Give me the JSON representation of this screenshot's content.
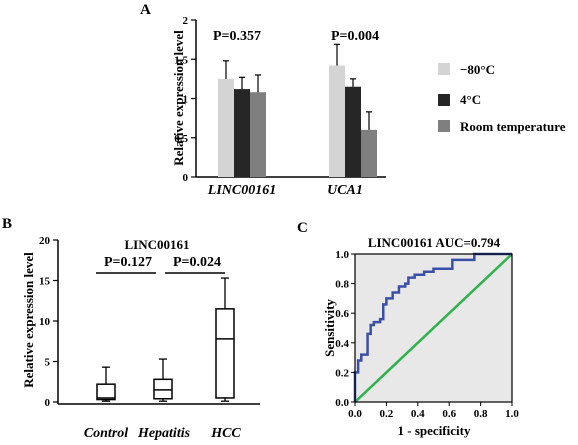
{
  "panels": {
    "a": {
      "label": "A"
    },
    "b": {
      "label": "B"
    },
    "c": {
      "label": "C"
    }
  },
  "chart_data": [
    {
      "panel": "A",
      "type": "bar",
      "ylabel": "Relative expression level",
      "ylim": [
        0,
        2.0
      ],
      "yticks": [
        0,
        0.5,
        1,
        1.5,
        2
      ],
      "ytick_labels": [
        "0",
        "0.5",
        "1",
        "1.5",
        "2"
      ],
      "categories": [
        "LINC00161",
        "UCA1"
      ],
      "series": [
        {
          "name": "−80°C",
          "color": "#d4d4d4",
          "values": [
            1.25,
            1.42
          ],
          "errors": [
            0.23,
            0.27
          ]
        },
        {
          "name": "4°C",
          "color": "#262626",
          "values": [
            1.12,
            1.15
          ],
          "errors": [
            0.15,
            0.1
          ]
        },
        {
          "name": "Room temperature",
          "color": "#7f7f7f",
          "values": [
            1.08,
            0.6
          ],
          "errors": [
            0.22,
            0.23
          ]
        }
      ],
      "p_values": [
        "P=0.357",
        "P=0.004"
      ],
      "legend_position": "right"
    },
    {
      "panel": "B",
      "type": "box",
      "title": "LINC00161",
      "ylabel": "Relative expression level",
      "ylim": [
        0,
        20
      ],
      "yticks": [
        0,
        5,
        10,
        15,
        20
      ],
      "ytick_labels": [
        "0",
        "5",
        "10",
        "15",
        "20"
      ],
      "categories": [
        "Control",
        "Hepatitis",
        "HCC"
      ],
      "boxes": [
        {
          "min": 0.1,
          "q1": 0.3,
          "median": 0.5,
          "q3": 2.2,
          "max": 4.3
        },
        {
          "min": 0.1,
          "q1": 0.4,
          "median": 1.5,
          "q3": 2.8,
          "max": 5.3
        },
        {
          "min": 0.1,
          "q1": 0.5,
          "median": 7.8,
          "q3": 11.5,
          "max": 15.3
        }
      ],
      "comparisons": [
        {
          "from": "Control",
          "to": "Hepatitis",
          "label": "P=0.127"
        },
        {
          "from": "Hepatitis",
          "to": "HCC",
          "label": "P=0.024"
        }
      ]
    },
    {
      "panel": "C",
      "type": "line",
      "title": "LINC00161 AUC=0.794",
      "xlabel": "1 - specificity",
      "ylabel": "Sensitivity",
      "xlim": [
        0,
        1
      ],
      "ylim": [
        0,
        1
      ],
      "ticks": [
        0,
        0.2,
        0.4,
        0.6,
        0.8,
        1
      ],
      "tick_labels": [
        "0.0",
        "0.2",
        "0.4",
        "0.6",
        "0.8",
        "1.0"
      ],
      "background_color": "#e8e8e8",
      "roc_color": "#3b4ea8",
      "reference_color": "#2db34a",
      "roc": [
        [
          0,
          0
        ],
        [
          0,
          0.2
        ],
        [
          0.02,
          0.2
        ],
        [
          0.02,
          0.28
        ],
        [
          0.04,
          0.28
        ],
        [
          0.04,
          0.32
        ],
        [
          0.08,
          0.32
        ],
        [
          0.08,
          0.46
        ],
        [
          0.1,
          0.46
        ],
        [
          0.1,
          0.52
        ],
        [
          0.12,
          0.52
        ],
        [
          0.12,
          0.54
        ],
        [
          0.16,
          0.54
        ],
        [
          0.16,
          0.56
        ],
        [
          0.18,
          0.56
        ],
        [
          0.18,
          0.66
        ],
        [
          0.2,
          0.66
        ],
        [
          0.2,
          0.7
        ],
        [
          0.24,
          0.7
        ],
        [
          0.24,
          0.74
        ],
        [
          0.28,
          0.74
        ],
        [
          0.28,
          0.78
        ],
        [
          0.32,
          0.78
        ],
        [
          0.32,
          0.8
        ],
        [
          0.34,
          0.8
        ],
        [
          0.34,
          0.84
        ],
        [
          0.38,
          0.84
        ],
        [
          0.38,
          0.86
        ],
        [
          0.44,
          0.86
        ],
        [
          0.44,
          0.88
        ],
        [
          0.5,
          0.88
        ],
        [
          0.5,
          0.9
        ],
        [
          0.62,
          0.9
        ],
        [
          0.62,
          0.96
        ],
        [
          0.76,
          0.96
        ],
        [
          0.76,
          1.0
        ],
        [
          1.0,
          1.0
        ]
      ]
    }
  ]
}
